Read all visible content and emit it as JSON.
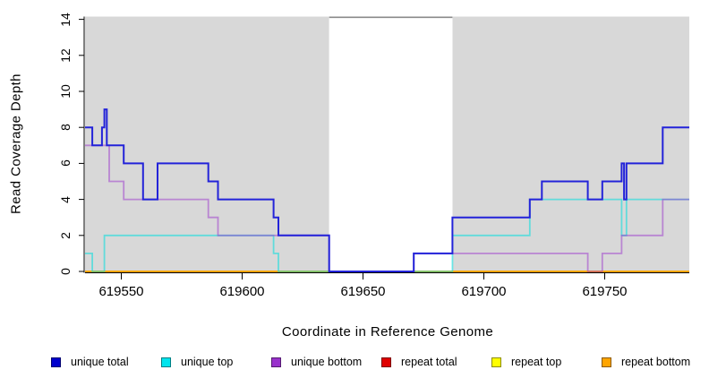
{
  "chart_data": {
    "type": "line",
    "subtype": "step-coverage",
    "title": "",
    "xlabel": "Coordinate in Reference Genome",
    "ylabel": "Read Coverage Depth",
    "xlim": [
      619535,
      619785
    ],
    "ylim": [
      0,
      14
    ],
    "x_ticks": [
      619550,
      619600,
      619650,
      619700,
      619750
    ],
    "y_ticks": [
      0,
      2,
      4,
      6,
      8,
      10,
      12,
      14
    ],
    "grid": false,
    "legend_position": "bottom",
    "background": {
      "masked_color": "#d8d8d8",
      "unmasked_color": "#ffffff",
      "masked_regions": [
        [
          619535,
          619636
        ],
        [
          619687,
          619785
        ]
      ],
      "unmasked_region": [
        619636,
        619687
      ],
      "unmasked_top_border_color": "#8a8a8a"
    },
    "axis_color": "#000000",
    "draw_order": [
      "repeat total",
      "repeat top",
      "repeat bottom",
      "unique top",
      "unique bottom",
      "unique total"
    ],
    "series": [
      {
        "name": "unique total",
        "color": "#2323d9",
        "opacity": 1,
        "width": 2,
        "segments": [
          [
            619535,
            619538,
            8
          ],
          [
            619538,
            619542,
            7
          ],
          [
            619542,
            619543,
            8
          ],
          [
            619543,
            619544,
            9
          ],
          [
            619544,
            619551,
            7
          ],
          [
            619551,
            619559,
            6
          ],
          [
            619559,
            619565,
            4
          ],
          [
            619565,
            619586,
            6
          ],
          [
            619586,
            619590,
            5
          ],
          [
            619590,
            619613,
            4
          ],
          [
            619613,
            619615,
            3
          ],
          [
            619615,
            619636,
            2
          ],
          [
            619636,
            619671,
            0
          ],
          [
            619671,
            619687,
            1
          ],
          [
            619687,
            619719,
            3
          ],
          [
            619719,
            619724,
            4
          ],
          [
            619724,
            619743,
            5
          ],
          [
            619743,
            619749,
            4
          ],
          [
            619749,
            619757,
            5
          ],
          [
            619757,
            619758,
            6
          ],
          [
            619758,
            619759,
            4
          ],
          [
            619759,
            619774,
            6
          ],
          [
            619774,
            619785,
            8
          ]
        ]
      },
      {
        "name": "unique top",
        "color": "#00dede",
        "opacity": 0.55,
        "width": 1.8,
        "segments": [
          [
            619535,
            619538,
            1
          ],
          [
            619538,
            619543,
            0
          ],
          [
            619543,
            619613,
            2
          ],
          [
            619613,
            619615,
            1
          ],
          [
            619615,
            619687,
            0
          ],
          [
            619687,
            619719,
            2
          ],
          [
            619719,
            619757,
            4
          ],
          [
            619757,
            619759,
            2
          ],
          [
            619759,
            619785,
            4
          ]
        ]
      },
      {
        "name": "unique bottom",
        "color": "#9932cc",
        "opacity": 0.5,
        "width": 1.8,
        "segments": [
          [
            619535,
            619545,
            7
          ],
          [
            619545,
            619551,
            5
          ],
          [
            619551,
            619586,
            4
          ],
          [
            619586,
            619590,
            3
          ],
          [
            619590,
            619636,
            2
          ],
          [
            619636,
            619671,
            0
          ],
          [
            619671,
            619743,
            1
          ],
          [
            619743,
            619749,
            0
          ],
          [
            619749,
            619757,
            1
          ],
          [
            619757,
            619774,
            2
          ],
          [
            619774,
            619785,
            4
          ]
        ]
      },
      {
        "name": "repeat total",
        "color": "#e00000",
        "opacity": 1,
        "width": 1.8,
        "segments": [
          [
            619535,
            619785,
            0
          ]
        ]
      },
      {
        "name": "repeat top",
        "color": "#ffff00",
        "opacity": 1,
        "width": 1.8,
        "segments": [
          [
            619535,
            619785,
            0
          ]
        ]
      },
      {
        "name": "repeat bottom",
        "color": "#ffa500",
        "opacity": 1,
        "width": 2,
        "segments": [
          [
            619535,
            619785,
            0
          ]
        ]
      }
    ]
  },
  "legend": {
    "items": [
      {
        "label": "unique total",
        "color": "#0000cd"
      },
      {
        "label": "unique top",
        "color": "#00e5ee"
      },
      {
        "label": "unique bottom",
        "color": "#9932cc"
      },
      {
        "label": "repeat total",
        "color": "#e00000"
      },
      {
        "label": "repeat top",
        "color": "#ffff00"
      },
      {
        "label": "repeat bottom",
        "color": "#ffa500"
      }
    ]
  }
}
